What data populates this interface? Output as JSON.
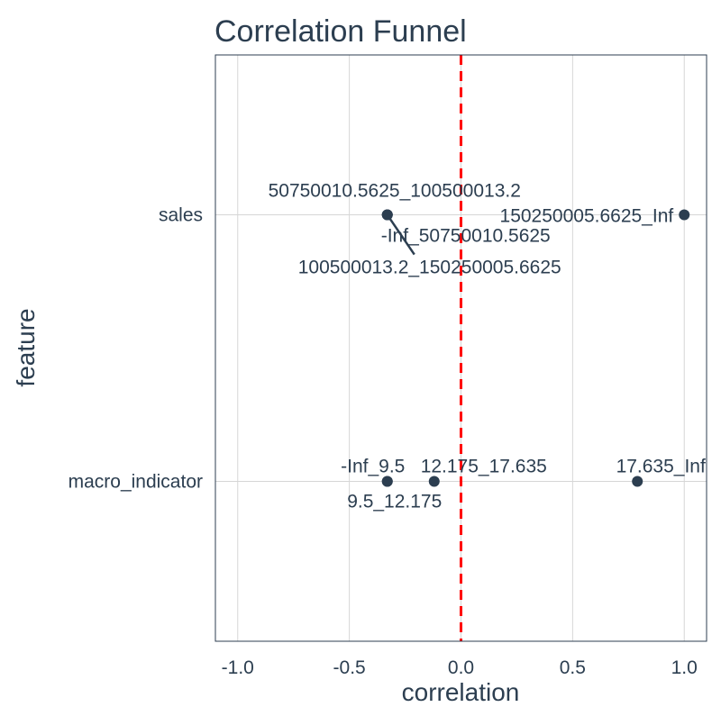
{
  "chart_data": {
    "type": "scatter",
    "title": "Correlation Funnel",
    "xlabel": "correlation",
    "ylabel": "feature",
    "xlim": [
      -1.1,
      1.1
    ],
    "x_ticks": [
      -1.0,
      -0.5,
      0.0,
      0.5,
      1.0
    ],
    "x_tick_labels": [
      "-1.0",
      "-0.5",
      "0.0",
      "0.5",
      "1.0"
    ],
    "categories": [
      "macro_indicator",
      "sales"
    ],
    "grid": true,
    "reference_line": {
      "x": 0,
      "style": "dashed",
      "color": "#ff0000"
    },
    "point_color": "#2c3e50",
    "points": [
      {
        "feature": "sales",
        "bin": "50750010.5625_100500013.2",
        "correlation": -0.33
      },
      {
        "feature": "sales",
        "bin": "-Inf_50750010.5625",
        "correlation": -0.33
      },
      {
        "feature": "sales",
        "bin": "100500013.2_150250005.6625",
        "correlation": -0.33
      },
      {
        "feature": "sales",
        "bin": "150250005.6625_Inf",
        "correlation": 1.0
      },
      {
        "feature": "macro_indicator",
        "bin": "-Inf_9.5",
        "correlation": -0.33
      },
      {
        "feature": "macro_indicator",
        "bin": "9.5_12.175",
        "correlation": -0.33
      },
      {
        "feature": "macro_indicator",
        "bin": "12.175_17.635",
        "correlation": -0.12
      },
      {
        "feature": "macro_indicator",
        "bin": "17.635_Inf",
        "correlation": 0.79
      }
    ]
  }
}
